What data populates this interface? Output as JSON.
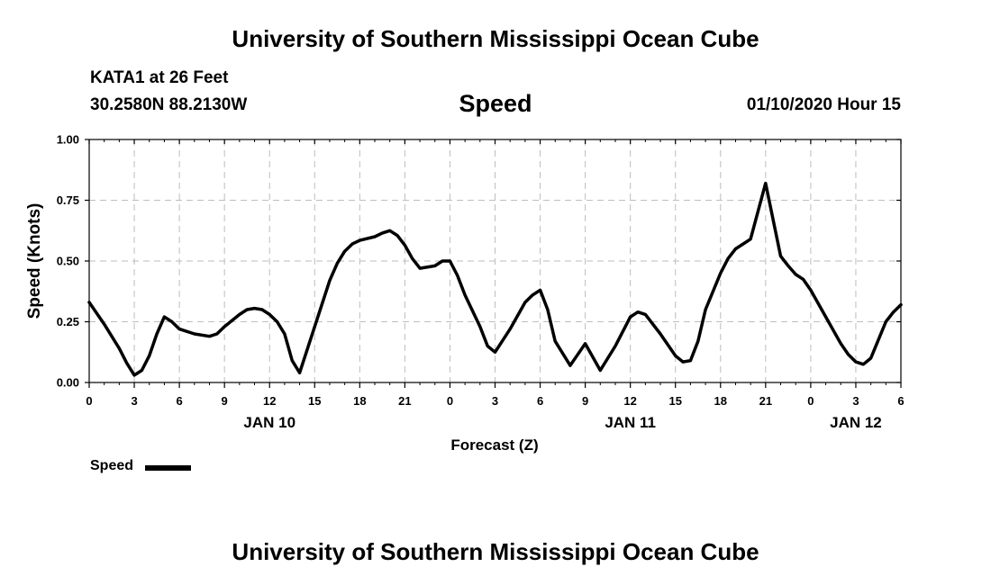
{
  "header": {
    "title": "University of Southern Mississippi Ocean Cube",
    "station": "KATA1 at 26 Feet",
    "coords": "30.2580N 88.2130W",
    "chart_title": "Speed",
    "datetime": "01/10/2020 Hour 15"
  },
  "footer": {
    "title": "University of Southern Mississippi Ocean Cube"
  },
  "legend": {
    "label": "Speed",
    "color": "#000000"
  },
  "chart_data": {
    "type": "line",
    "title": "Speed",
    "xlabel": "Forecast (Z)",
    "ylabel": "Speed (Knots)",
    "xlim": [
      0,
      54
    ],
    "ylim": [
      0,
      1
    ],
    "grid": true,
    "legend_position": "bottom-left",
    "y_ticks": [
      "0.00",
      "0.25",
      "0.50",
      "0.75",
      "1.00"
    ],
    "y_tick_values": [
      0,
      0.25,
      0.5,
      0.75,
      1.0
    ],
    "x_tick_labels": [
      "0",
      "3",
      "6",
      "9",
      "12",
      "15",
      "18",
      "21",
      "0",
      "3",
      "6",
      "9",
      "12",
      "15",
      "18",
      "21",
      "0",
      "3",
      "6"
    ],
    "x_tick_hours": [
      0,
      3,
      6,
      9,
      12,
      15,
      18,
      21,
      24,
      27,
      30,
      33,
      36,
      39,
      42,
      45,
      48,
      51,
      54
    ],
    "day_labels": [
      {
        "label": "JAN 10",
        "hour": 12
      },
      {
        "label": "JAN 11",
        "hour": 36
      },
      {
        "label": "JAN 12",
        "hour": 51
      }
    ],
    "series": [
      {
        "name": "Speed",
        "x": [
          0,
          1,
          2,
          2.5,
          3,
          3.5,
          4,
          4.5,
          5,
          5.5,
          6,
          7,
          8,
          8.5,
          9,
          10,
          10.5,
          11,
          11.5,
          12,
          12.5,
          13,
          13.5,
          14,
          15,
          16,
          16.5,
          17,
          17.5,
          18,
          19,
          19.5,
          20,
          20.5,
          21,
          21.5,
          22,
          23,
          23.5,
          24,
          24.5,
          25,
          26,
          26.5,
          27,
          28,
          29,
          29.5,
          30,
          30.5,
          31,
          32,
          33,
          34,
          35,
          36,
          36.5,
          37,
          38,
          39,
          39.5,
          40,
          40.5,
          41,
          42,
          42.5,
          43,
          43.5,
          44,
          45,
          46,
          46.5,
          47,
          47.5,
          48,
          49,
          50,
          50.5,
          51,
          51.5,
          52,
          53,
          53.5,
          54
        ],
        "values": [
          0.33,
          0.24,
          0.14,
          0.08,
          0.03,
          0.05,
          0.11,
          0.2,
          0.27,
          0.25,
          0.22,
          0.2,
          0.19,
          0.2,
          0.23,
          0.28,
          0.3,
          0.305,
          0.3,
          0.28,
          0.25,
          0.2,
          0.09,
          0.04,
          0.23,
          0.42,
          0.49,
          0.54,
          0.57,
          0.585,
          0.6,
          0.615,
          0.625,
          0.605,
          0.565,
          0.51,
          0.47,
          0.48,
          0.5,
          0.5,
          0.44,
          0.36,
          0.23,
          0.15,
          0.125,
          0.22,
          0.33,
          0.36,
          0.38,
          0.3,
          0.17,
          0.07,
          0.16,
          0.05,
          0.15,
          0.27,
          0.29,
          0.28,
          0.2,
          0.11,
          0.085,
          0.09,
          0.17,
          0.3,
          0.45,
          0.51,
          0.55,
          0.57,
          0.59,
          0.82,
          0.52,
          0.48,
          0.445,
          0.425,
          0.38,
          0.27,
          0.16,
          0.115,
          0.085,
          0.075,
          0.1,
          0.25,
          0.29,
          0.32
        ]
      }
    ]
  }
}
